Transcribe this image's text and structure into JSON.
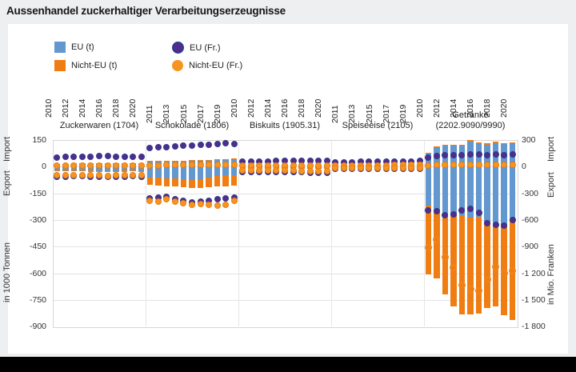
{
  "title": "Aussenhandel zuckerhaltiger Verarbeitungserzeugnisse",
  "legend": {
    "eu_t": "EU (t)",
    "nicht_eu_t": "Nicht-EU (t)",
    "eu_fr": "EU (Fr.)",
    "nicht_eu_fr": "Nicht-EU (Fr.)"
  },
  "left_axis": {
    "import_label": "Import",
    "export_label": "Export",
    "unit_label": "in 1000 Tonnen",
    "tick_values": [
      150,
      0,
      -150,
      -300,
      -450,
      -600,
      -750,
      -900
    ],
    "tick_labels": [
      "150",
      "0",
      "-150",
      "-300",
      "-450",
      "-600",
      "-750",
      "-900"
    ]
  },
  "right_axis": {
    "import_label": "Import",
    "export_label": "Export",
    "unit_label": "in Mio. Franken",
    "tick_values": [
      300,
      0,
      -300,
      -600,
      -900,
      -1200,
      -1500,
      -1800
    ],
    "tick_labels": [
      "300",
      "0",
      "-300",
      "-600",
      "-900",
      "-1 200",
      "-1 500",
      "-1 800"
    ]
  },
  "colors": {
    "bar_eu": "#6297cf",
    "bar_nicht_eu": "#f07d12",
    "dot_eu_fill": "#532c8a",
    "dot_eu_border": "#2c3a8f",
    "dot_nicht_eu_fill": "#f79420",
    "dot_nicht_eu_border": "#e87c10",
    "ring_border": "#ef8418",
    "background": "#edeff0",
    "panel": "#ffffff",
    "footer": "#000000"
  },
  "chart_data": {
    "type": "bar",
    "years": [
      2010,
      2011,
      2012,
      2013,
      2014,
      2015,
      2016,
      2017,
      2018,
      2019,
      2020
    ],
    "t_axis_range": [
      -900,
      150
    ],
    "fr_axis_range": [
      -1800,
      300
    ],
    "units": {
      "bars": "1000 Tonnen",
      "dots": "Mio. Franken"
    },
    "positive_side": "Import",
    "negative_side": "Export",
    "groups": [
      {
        "name": "Zuckerwaren (1704)",
        "label_lines": [
          "Zuckerwaren (1704)"
        ],
        "import_eu_t": [
          15,
          15,
          16,
          16,
          17,
          17,
          17,
          17,
          16,
          16,
          17
        ],
        "import_nicht_eu_t": [
          2,
          2,
          2,
          2,
          2,
          2,
          2,
          2,
          2,
          2,
          2
        ],
        "export_eu_t": [
          -19,
          -20,
          -21,
          -22,
          -23,
          -24,
          -24,
          -24,
          -23,
          -22,
          -24
        ],
        "export_nicht_eu_t": [
          -4,
          -4,
          -5,
          -5,
          -5,
          -5,
          -5,
          -5,
          -5,
          -4,
          -5
        ],
        "import_eu_fr": [
          105,
          108,
          110,
          112,
          115,
          118,
          116,
          114,
          112,
          110,
          114
        ],
        "import_nicht_eu_fr": [
          14,
          14,
          15,
          15,
          16,
          16,
          16,
          16,
          15,
          15,
          16
        ],
        "export_eu_fr": [
          -110,
          -112,
          -108,
          -106,
          -110,
          -112,
          -114,
          -112,
          -110,
          -105,
          -115
        ],
        "export_nicht_eu_fr": [
          -95,
          -98,
          -96,
          -95,
          -98,
          -100,
          -102,
          -100,
          -98,
          -92,
          -100
        ]
      },
      {
        "name": "Schokolade (1806)",
        "label_lines": [
          "Schokolade (1806)"
        ],
        "import_eu_t": [
          30,
          31,
          32,
          33,
          34,
          35,
          36,
          37,
          39,
          41,
          43
        ],
        "import_nicht_eu_t": [
          1,
          1,
          1,
          1,
          1,
          1,
          1,
          1,
          1,
          1,
          2
        ],
        "export_eu_t": [
          -60,
          -62,
          -64,
          -67,
          -71,
          -74,
          -72,
          -62,
          -52,
          -48,
          -46
        ],
        "export_nicht_eu_t": [
          -43,
          -44,
          -46,
          -46,
          -46,
          -46,
          -46,
          -53,
          -60,
          -62,
          -62
        ],
        "import_eu_fr": [
          210,
          216,
          222,
          228,
          234,
          240,
          246,
          250,
          256,
          262,
          252
        ],
        "import_nicht_eu_fr": [
          16,
          16,
          17,
          17,
          18,
          18,
          18,
          18,
          19,
          20,
          20
        ],
        "export_eu_fr": [
          -355,
          -350,
          -335,
          -365,
          -385,
          -400,
          -390,
          -380,
          -370,
          -360,
          -345
        ],
        "export_nicht_eu_fr": [
          -385,
          -390,
          -370,
          -395,
          -415,
          -425,
          -420,
          -432,
          -436,
          -430,
          -385
        ]
      },
      {
        "name": "Biskuits (1905.31)",
        "label_lines": [
          "Biskuits (1905.31)"
        ],
        "import_eu_t": [
          8,
          8,
          8,
          9,
          9,
          9,
          9,
          9,
          9,
          9,
          10
        ],
        "import_nicht_eu_t": [
          1,
          1,
          1,
          1,
          1,
          1,
          1,
          1,
          1,
          1,
          1
        ],
        "export_eu_t": [
          -8,
          -8,
          -8,
          -8,
          -9,
          -9,
          -9,
          -9,
          -8,
          -8,
          -8
        ],
        "export_nicht_eu_t": [
          -3,
          -3,
          -3,
          -3,
          -3,
          -3,
          -3,
          -3,
          -3,
          -3,
          -3
        ],
        "import_eu_fr": [
          56,
          58,
          59,
          61,
          62,
          63,
          64,
          65,
          66,
          68,
          70
        ],
        "import_nicht_eu_fr": [
          10,
          10,
          11,
          11,
          12,
          12,
          12,
          12,
          13,
          13,
          13
        ],
        "export_eu_fr": [
          -56,
          -58,
          -59,
          -61,
          -62,
          -63,
          -64,
          -64,
          -65,
          -66,
          -68
        ],
        "export_nicht_eu_fr": [
          -40,
          -42,
          -43,
          -44,
          -45,
          -46,
          -46,
          -47,
          -48,
          -48,
          -50
        ]
      },
      {
        "name": "Speiseeise (2105)",
        "label_lines": [
          "Speiseeise (2105)"
        ],
        "import_eu_t": [
          5,
          5,
          5,
          6,
          6,
          6,
          6,
          6,
          7,
          7,
          7
        ],
        "import_nicht_eu_t": [
          1,
          1,
          1,
          1,
          1,
          1,
          1,
          1,
          1,
          1,
          1
        ],
        "export_eu_t": [
          -2,
          -2,
          -2,
          -2,
          -2,
          -2,
          -2,
          -2,
          -2,
          -2,
          -3
        ],
        "export_nicht_eu_t": [
          -1,
          -1,
          -1,
          -1,
          -1,
          -1,
          -1,
          -1,
          -1,
          -1,
          -1
        ],
        "import_eu_fr": [
          48,
          50,
          52,
          53,
          54,
          55,
          56,
          57,
          59,
          61,
          63
        ],
        "import_nicht_eu_fr": [
          14,
          14,
          15,
          15,
          16,
          16,
          16,
          17,
          17,
          18,
          18
        ],
        "export_eu_fr": [
          -22,
          -22,
          -23,
          -23,
          -24,
          -24,
          -25,
          -25,
          -26,
          -26,
          -27
        ],
        "export_nicht_eu_fr": [
          -14,
          -14,
          -15,
          -15,
          -16,
          -16,
          -16,
          -17,
          -17,
          -18,
          -18
        ]
      },
      {
        "name": "Getränke (2202.9090/9990)",
        "label_lines": [
          "Getränke",
          "(2202.9090/9990)"
        ],
        "ring_export_dots": true,
        "import_eu_t": [
          75,
          110,
          120,
          120,
          117,
          143,
          131,
          125,
          134,
          128,
          131
        ],
        "import_nicht_eu_t": [
          2,
          4,
          4,
          4,
          4,
          5,
          5,
          5,
          5,
          5,
          5
        ],
        "export_eu_t": [
          -219,
          -246,
          -287,
          -273,
          -275,
          -287,
          -284,
          -310,
          -330,
          -333,
          -303
        ],
        "export_nicht_eu_t": [
          -386,
          -381,
          -431,
          -513,
          -555,
          -545,
          -543,
          -485,
          -456,
          -503,
          -561
        ],
        "import_eu_fr": [
          100,
          120,
          130,
          130,
          128,
          140,
          135,
          130,
          135,
          132,
          138
        ],
        "import_nicht_eu_fr": [
          15,
          18,
          18,
          18,
          18,
          20,
          20,
          20,
          20,
          20,
          20
        ],
        "export_eu_fr": [
          -495,
          -500,
          -550,
          -540,
          -490,
          -470,
          -515,
          -635,
          -655,
          -660,
          -600
        ],
        "export_nicht_eu_fr": [
          -910,
          -820,
          -1015,
          -1135,
          -1330,
          -1380,
          -1395,
          -1275,
          -1125,
          -1200,
          -1170
        ]
      }
    ]
  }
}
